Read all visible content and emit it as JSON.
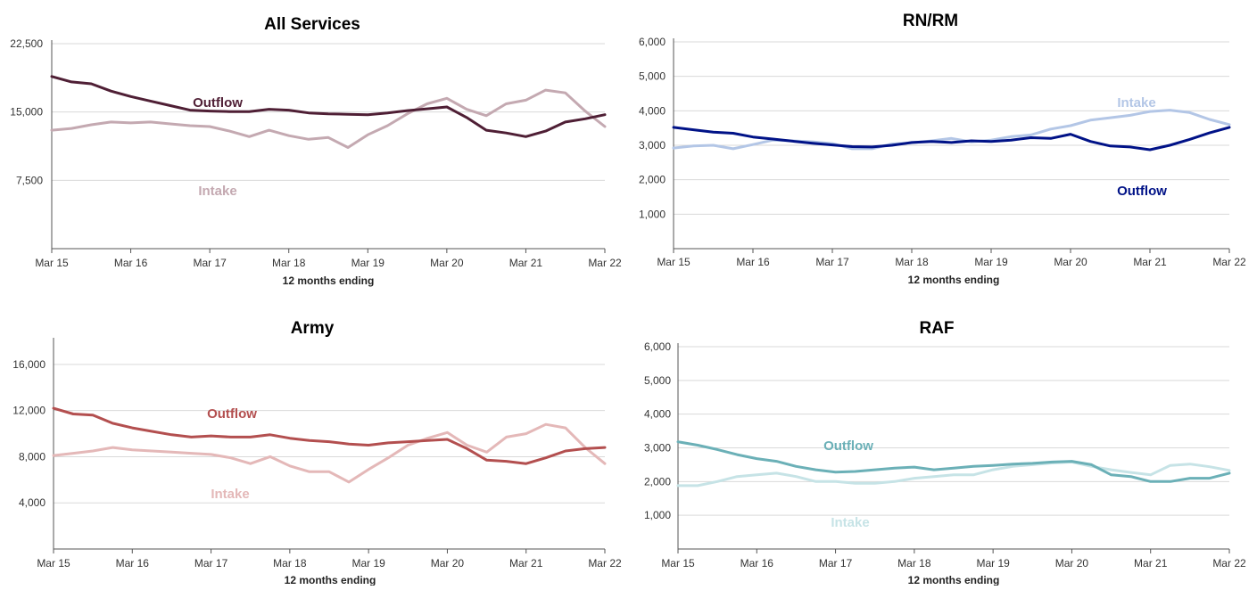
{
  "chart_data": [
    {
      "type": "line",
      "title": "All Services",
      "xlabel": "12 months ending",
      "ylabel": "",
      "x_ticks": [
        "Mar 15",
        "Mar 16",
        "Mar 17",
        "Mar 18",
        "Mar 19",
        "Mar 20",
        "Mar 21",
        "Mar 22"
      ],
      "y_ticks": [
        "7,500",
        "15,000",
        "22,500"
      ],
      "ylim": [
        0,
        22500
      ],
      "grid": true,
      "series": [
        {
          "name": "Intake",
          "color": "#c4a9b1",
          "values": [
            13000,
            13200,
            13600,
            13900,
            13800,
            13900,
            13700,
            13500,
            13400,
            12900,
            12300,
            13000,
            12400,
            12000,
            12200,
            11100,
            12500,
            13500,
            14800,
            15900,
            16500,
            15300,
            14600,
            15900,
            16300,
            17400,
            17100,
            15100,
            13400
          ]
        },
        {
          "name": "Outflow",
          "color": "#4f1f35",
          "values": [
            18900,
            18300,
            18100,
            17300,
            16700,
            16200,
            15700,
            15200,
            15100,
            15050,
            15050,
            15300,
            15200,
            14900,
            14800,
            14750,
            14700,
            14900,
            15150,
            15350,
            15550,
            14400,
            13000,
            12700,
            12300,
            12900,
            13900,
            14250,
            14700
          ]
        }
      ]
    },
    {
      "type": "line",
      "title": "RN/RM",
      "xlabel": "12 months ending",
      "ylabel": "",
      "x_ticks": [
        "Mar 15",
        "Mar 16",
        "Mar 17",
        "Mar 18",
        "Mar 19",
        "Mar 20",
        "Mar 21",
        "Mar 22"
      ],
      "y_ticks": [
        "1,000",
        "2,000",
        "3,000",
        "4,000",
        "5,000",
        "6,000"
      ],
      "ylim": [
        0,
        6000
      ],
      "grid": true,
      "series": [
        {
          "name": "Intake",
          "color": "#b3c6e6",
          "values": [
            2920,
            2980,
            3000,
            2900,
            3020,
            3150,
            3130,
            3100,
            3050,
            2900,
            2900,
            3040,
            3070,
            3130,
            3200,
            3100,
            3150,
            3250,
            3300,
            3470,
            3570,
            3730,
            3800,
            3870,
            3980,
            4020,
            3950,
            3750,
            3600
          ]
        },
        {
          "name": "Outflow",
          "color": "#001287",
          "values": [
            3520,
            3450,
            3380,
            3350,
            3240,
            3180,
            3120,
            3060,
            3010,
            2960,
            2950,
            3000,
            3080,
            3110,
            3080,
            3130,
            3110,
            3150,
            3220,
            3200,
            3320,
            3110,
            2980,
            2950,
            2870,
            3000,
            3170,
            3360,
            3520
          ]
        }
      ]
    },
    {
      "type": "line",
      "title": "Army",
      "xlabel": "12 months ending",
      "ylabel": "",
      "x_ticks": [
        "Mar 15",
        "Mar 16",
        "Mar 17",
        "Mar 18",
        "Mar 19",
        "Mar 20",
        "Mar 21",
        "Mar 22"
      ],
      "y_ticks": [
        "4,000",
        "8,000",
        "12,000",
        "16,000"
      ],
      "ylim": [
        0,
        18000
      ],
      "grid": true,
      "series": [
        {
          "name": "Intake",
          "color": "#e4b8b8",
          "values": [
            8100,
            8300,
            8500,
            8800,
            8600,
            8500,
            8400,
            8300,
            8200,
            7900,
            7400,
            8000,
            7200,
            6700,
            6700,
            5800,
            6900,
            7900,
            9000,
            9600,
            10100,
            9000,
            8400,
            9700,
            10000,
            10800,
            10500,
            8800,
            7400
          ]
        },
        {
          "name": "Outflow",
          "color": "#b34f4f",
          "values": [
            12200,
            11700,
            11600,
            10900,
            10500,
            10200,
            9900,
            9700,
            9800,
            9700,
            9700,
            9900,
            9600,
            9400,
            9300,
            9100,
            9000,
            9200,
            9300,
            9400,
            9500,
            8700,
            7700,
            7600,
            7400,
            7900,
            8500,
            8700,
            8800
          ]
        }
      ]
    },
    {
      "type": "line",
      "title": "RAF",
      "xlabel": "12 months ending",
      "ylabel": "",
      "x_ticks": [
        "Mar 15",
        "Mar 16",
        "Mar 17",
        "Mar 18",
        "Mar 19",
        "Mar 20",
        "Mar 21",
        "Mar 22"
      ],
      "y_ticks": [
        "1,000",
        "2,000",
        "3,000",
        "4,000",
        "5,000",
        "6,000"
      ],
      "ylim": [
        0,
        6000
      ],
      "grid": true,
      "series": [
        {
          "name": "Intake",
          "color": "#c6e3e6",
          "values": [
            1880,
            1880,
            2000,
            2150,
            2200,
            2250,
            2150,
            2000,
            2000,
            1950,
            1950,
            2000,
            2100,
            2150,
            2200,
            2200,
            2350,
            2450,
            2500,
            2550,
            2580,
            2450,
            2350,
            2270,
            2200,
            2480,
            2520,
            2440,
            2330
          ]
        },
        {
          "name": "Outflow",
          "color": "#6bb0b7",
          "values": [
            3180,
            3080,
            2950,
            2800,
            2680,
            2600,
            2450,
            2350,
            2280,
            2300,
            2350,
            2400,
            2430,
            2350,
            2400,
            2450,
            2480,
            2520,
            2540,
            2580,
            2600,
            2500,
            2200,
            2150,
            2000,
            2000,
            2100,
            2100,
            2250
          ]
        }
      ]
    }
  ]
}
